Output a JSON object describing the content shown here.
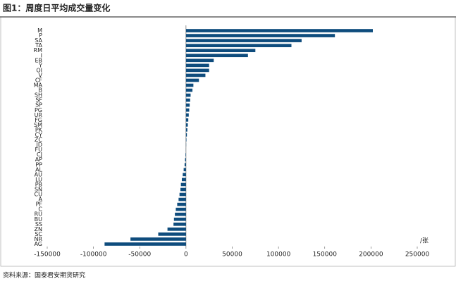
{
  "chart_data": {
    "type": "barh",
    "title": "图1：周度日平均成交量变化",
    "unit": "/张",
    "source": "资料来源：国泰君安期货研究",
    "color": "#0e4c7d",
    "categories": [
      "M",
      "P",
      "SA",
      "TA",
      "RM",
      "I",
      "EB",
      "Y",
      "OI",
      "V",
      "CF",
      "MA",
      "B",
      "SH",
      "SF",
      "SP",
      "PG",
      "UR",
      "FG",
      "SM",
      "PK",
      "CY",
      "ZC",
      "JD",
      "FU",
      "CJ",
      "AP",
      "PP",
      "AL",
      "AU",
      "LU",
      "PB",
      "SN",
      "CU",
      "A",
      "PF",
      "C",
      "RU",
      "BU",
      "SS",
      "ZN",
      "SC",
      "NR",
      "AG"
    ],
    "values": [
      202000,
      161000,
      125000,
      114000,
      75000,
      67000,
      30000,
      25000,
      25000,
      21000,
      14000,
      8000,
      7000,
      5000,
      4500,
      4000,
      3500,
      3000,
      2500,
      2000,
      1500,
      1000,
      500,
      200,
      -100,
      -500,
      -1000,
      -1500,
      -2500,
      -3500,
      -4500,
      -5500,
      -6000,
      -7000,
      -8000,
      -9500,
      -11000,
      -12000,
      -13000,
      -13500,
      -20000,
      -30000,
      -60000,
      -88000
    ],
    "xlim": [
      -150000,
      250000
    ],
    "xticks": [
      -150000,
      -100000,
      -50000,
      0,
      50000,
      100000,
      150000,
      200000,
      250000
    ]
  }
}
